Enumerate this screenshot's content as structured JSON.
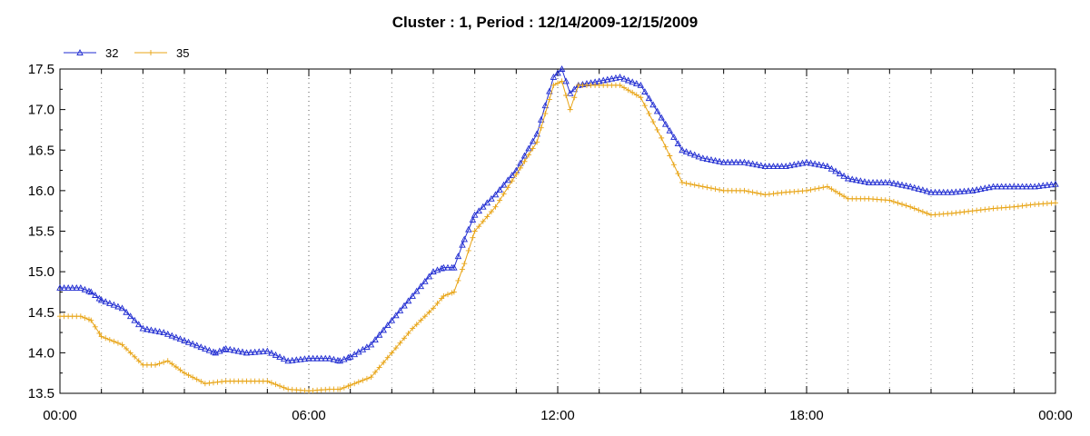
{
  "chart_data": {
    "type": "line",
    "title": "Cluster : 1, Period : 12/14/2009-12/15/2009",
    "xlabel": "",
    "ylabel": "",
    "x_tick_labels": [
      "00:00",
      "06:00",
      "12:00",
      "18:00",
      "00:00"
    ],
    "x_range_hours": [
      0,
      24
    ],
    "ylim": [
      13.5,
      17.5
    ],
    "y_ticks": [
      "13.5",
      "14.0",
      "14.5",
      "15.0",
      "15.5",
      "16.0",
      "16.5",
      "17.0",
      "17.5"
    ],
    "grid": true,
    "legend_placement": "top-left",
    "series": [
      {
        "name": "32",
        "color": "#1f2bd1",
        "marker": "triangle",
        "x": [
          0,
          0.5,
          0.75,
          1,
          1.5,
          2,
          2.5,
          3,
          3.5,
          3.75,
          4,
          4.5,
          5,
          5.5,
          6,
          6.5,
          6.75,
          7,
          7.5,
          8,
          8.5,
          9,
          9.25,
          9.5,
          9.75,
          10,
          10.5,
          11,
          11.5,
          11.9,
          12.1,
          12.3,
          12.5,
          13,
          13.5,
          14,
          14.5,
          15,
          15.5,
          16,
          16.5,
          17,
          17.5,
          18,
          18.5,
          19,
          19.5,
          20,
          20.5,
          21,
          21.5,
          22,
          22.5,
          23,
          23.5,
          24
        ],
        "values": [
          14.8,
          14.8,
          14.75,
          14.65,
          14.55,
          14.3,
          14.25,
          14.15,
          14.05,
          14.0,
          14.05,
          14.0,
          14.02,
          13.9,
          13.93,
          13.93,
          13.9,
          13.95,
          14.1,
          14.4,
          14.7,
          15.0,
          15.05,
          15.05,
          15.4,
          15.7,
          15.95,
          16.25,
          16.7,
          17.4,
          17.5,
          17.2,
          17.3,
          17.35,
          17.4,
          17.3,
          16.9,
          16.5,
          16.4,
          16.35,
          16.35,
          16.3,
          16.3,
          16.35,
          16.3,
          16.15,
          16.1,
          16.1,
          16.05,
          15.98,
          15.98,
          16.0,
          16.05,
          16.05,
          16.05,
          16.08
        ]
      },
      {
        "name": "35",
        "color": "#e8a415",
        "marker": "plus",
        "x": [
          0,
          0.5,
          0.75,
          1,
          1.5,
          2,
          2.3,
          2.6,
          3,
          3.5,
          4,
          4.5,
          5,
          5.5,
          6,
          6.5,
          6.75,
          7,
          7.5,
          8,
          8.5,
          9,
          9.25,
          9.5,
          9.75,
          10,
          10.5,
          11,
          11.5,
          11.9,
          12.1,
          12.3,
          12.5,
          13,
          13.5,
          14,
          14.5,
          15,
          15.5,
          16,
          16.5,
          17,
          17.5,
          18,
          18.5,
          19,
          19.5,
          20,
          20.5,
          21,
          21.5,
          22,
          22.5,
          23,
          23.5,
          24
        ],
        "values": [
          14.45,
          14.45,
          14.4,
          14.2,
          14.1,
          13.85,
          13.85,
          13.9,
          13.75,
          13.62,
          13.65,
          13.65,
          13.65,
          13.55,
          13.53,
          13.55,
          13.55,
          13.6,
          13.7,
          14.0,
          14.3,
          14.55,
          14.7,
          14.75,
          15.1,
          15.5,
          15.8,
          16.2,
          16.6,
          17.3,
          17.35,
          17.0,
          17.3,
          17.3,
          17.3,
          17.15,
          16.65,
          16.1,
          16.05,
          16.0,
          16.0,
          15.95,
          15.98,
          16.0,
          16.05,
          15.9,
          15.9,
          15.88,
          15.8,
          15.7,
          15.72,
          15.75,
          15.78,
          15.8,
          15.83,
          15.85
        ]
      }
    ]
  }
}
